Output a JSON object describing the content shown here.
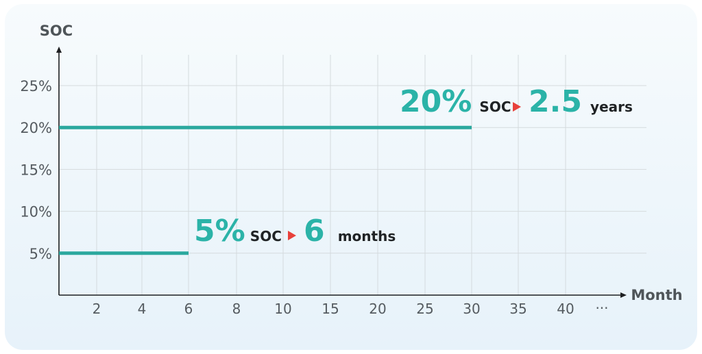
{
  "chart_data": {
    "type": "line",
    "ylabel": "SOC",
    "xlabel": "Month",
    "y_ticks": [
      "25%",
      "20%",
      "15%",
      "10%",
      "5%"
    ],
    "y_tick_values": [
      25,
      20,
      15,
      10,
      5
    ],
    "x_ticks": [
      "2",
      "4",
      "6",
      "8",
      "10",
      "15",
      "20",
      "25",
      "30",
      "35",
      "40"
    ],
    "x_ellipsis": "···",
    "ylim": [
      0,
      29
    ],
    "grid": true,
    "colors": {
      "line": "#2ba89e",
      "accent": "#2bb3a8",
      "arrow": "#e8413b",
      "grid": "#d4dadd",
      "axis": "#1d1f21"
    },
    "series": [
      {
        "soc": 20,
        "start_tick": "0",
        "end_tick": "30"
      },
      {
        "soc": 5,
        "start_tick": "0",
        "end_tick": "6"
      }
    ],
    "annotations": [
      {
        "value": "20%",
        "soc_label": "SOC",
        "duration": "2.5",
        "unit": "years"
      },
      {
        "value": "5%",
        "soc_label": "SOC",
        "duration": "6",
        "unit": "months"
      }
    ]
  }
}
